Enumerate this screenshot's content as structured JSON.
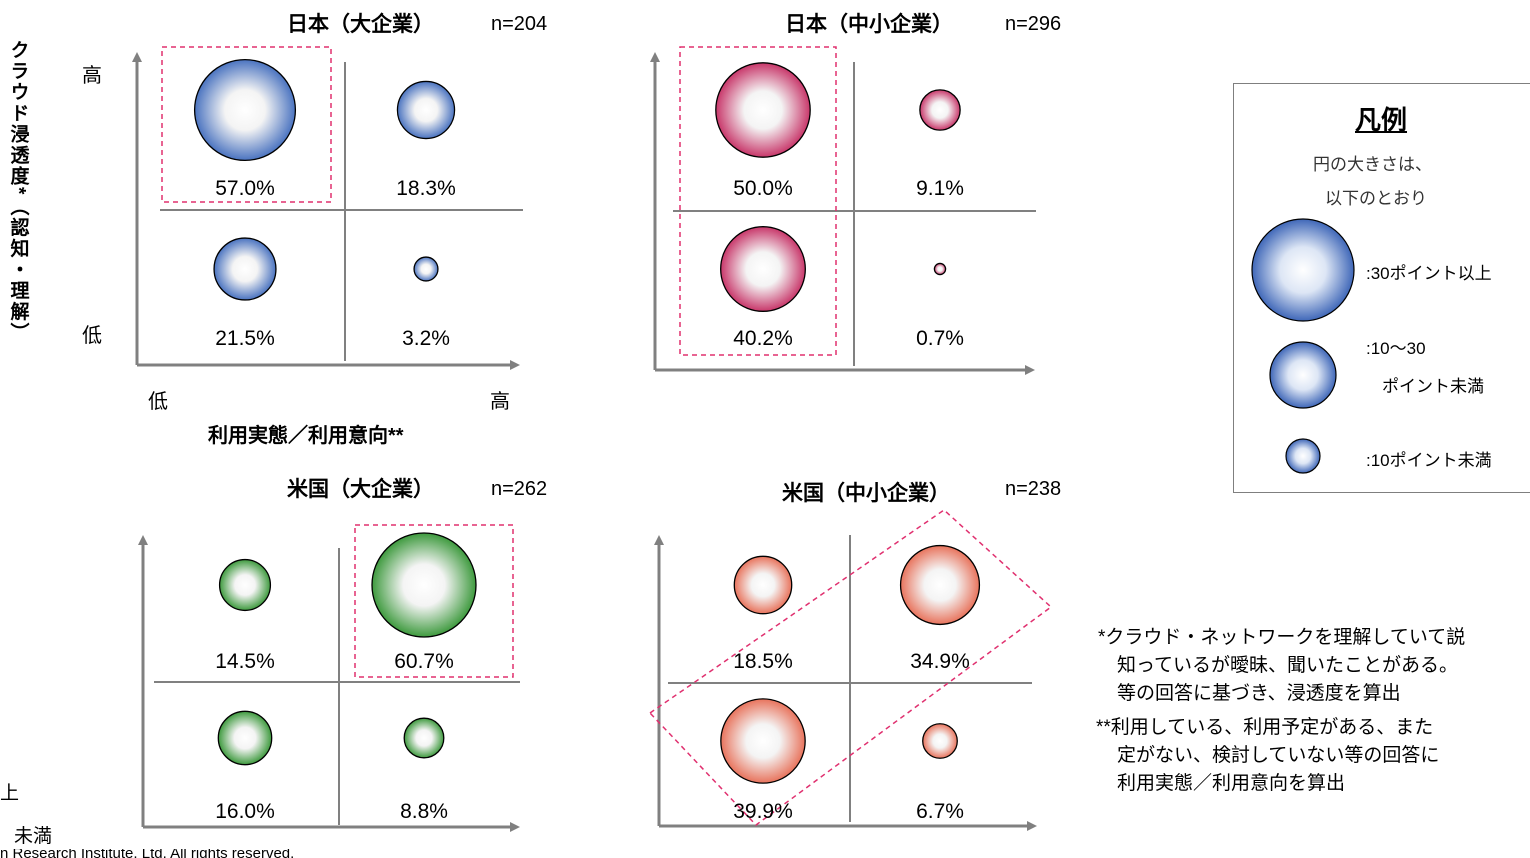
{
  "y_axis_title": "クラウド浸透度*（認知・理解）",
  "y_axis_high": "高",
  "y_axis_low": "低",
  "x_axis_low": "低",
  "x_axis_high": "高",
  "x_axis_title": "利用実態／利用意向**",
  "legend": {
    "title": "凡例",
    "subtitle_line1": "円の大きさは、",
    "subtitle_line2": "以下のとおり",
    "items": [
      {
        "label": ":30ポイント以上"
      },
      {
        "label_line1": ":10〜30",
        "label_line2": "ポイント未満"
      },
      {
        "label": ":10ポイント未満"
      }
    ]
  },
  "notes": [
    "*クラウド・ネットワークを理解していて説",
    "知っているが曖昧、聞いたことがある。",
    "等の回答に基づき、浸透度を算出",
    "**利用している、利用予定がある、また",
    "定がない、検討していない等の回答に",
    "利用実態／利用意向を算出"
  ],
  "left_fragments": [
    "上",
    "未満"
  ],
  "copyright_fragment": "n Research Institute, Ltd. All rights reserved.",
  "colors": {
    "japan_large": "#4a73c0",
    "japan_sme": "#c8376a",
    "us_large": "#3e9a3e",
    "us_sme": "#e8735c",
    "highlight": "#e0306f",
    "axis": "#808080"
  },
  "chart_data": [
    {
      "type": "bubble-quadrant",
      "title": "日本（大企業）",
      "n": "n=204",
      "quadrants": [
        {
          "position": "top-left",
          "label": "57.0%",
          "value": 57.0
        },
        {
          "position": "top-right",
          "label": "18.3%",
          "value": 18.3
        },
        {
          "position": "bottom-left",
          "label": "21.5%",
          "value": 21.5
        },
        {
          "position": "bottom-right",
          "label": "3.2%",
          "value": 3.2
        }
      ],
      "highlighted": [
        "top-left"
      ]
    },
    {
      "type": "bubble-quadrant",
      "title": "日本（中小企業）",
      "n": "n=296",
      "quadrants": [
        {
          "position": "top-left",
          "label": "50.0%",
          "value": 50.0
        },
        {
          "position": "top-right",
          "label": "9.1%",
          "value": 9.1
        },
        {
          "position": "bottom-left",
          "label": "40.2%",
          "value": 40.2
        },
        {
          "position": "bottom-right",
          "label": "0.7%",
          "value": 0.7
        }
      ],
      "highlighted": [
        "top-left",
        "bottom-left"
      ]
    },
    {
      "type": "bubble-quadrant",
      "title": "米国（大企業）",
      "n": "n=262",
      "quadrants": [
        {
          "position": "top-left",
          "label": "14.5%",
          "value": 14.5
        },
        {
          "position": "top-right",
          "label": "60.7%",
          "value": 60.7
        },
        {
          "position": "bottom-left",
          "label": "16.0%",
          "value": 16.0
        },
        {
          "position": "bottom-right",
          "label": "8.8%",
          "value": 8.8
        }
      ],
      "highlighted": [
        "top-right"
      ]
    },
    {
      "type": "bubble-quadrant",
      "title": "米国（中小企業）",
      "n": "n=238",
      "quadrants": [
        {
          "position": "top-left",
          "label": "18.5%",
          "value": 18.5
        },
        {
          "position": "top-right",
          "label": "34.9%",
          "value": 34.9
        },
        {
          "position": "bottom-left",
          "label": "39.9%",
          "value": 39.9
        },
        {
          "position": "bottom-right",
          "label": "6.7%",
          "value": 6.7
        }
      ],
      "highlighted": [
        "top-right",
        "bottom-left"
      ]
    }
  ]
}
